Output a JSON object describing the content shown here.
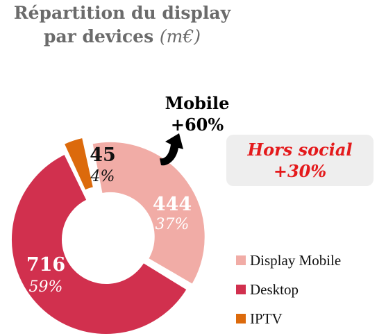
{
  "title": {
    "line1": "Répartition du display",
    "line2_main": "par devices",
    "line2_unit": "(m€)"
  },
  "callout": {
    "line1": "Mobile",
    "line2": "+60%"
  },
  "hors_social": {
    "line1": "Hors social",
    "line2": "+30%"
  },
  "colors": {
    "display_mobile": "#f1aca6",
    "desktop": "#d1304e",
    "iptv": "#dc6a0c",
    "hors_social_text": "#e41a1c",
    "hors_social_bg": "#eeeeee"
  },
  "chart_data": {
    "type": "pie",
    "variant": "donut",
    "categories": [
      "Display Mobile",
      "Desktop",
      "IPTV"
    ],
    "values": [
      444,
      716,
      45
    ],
    "percent_labels": [
      "37%",
      "59%",
      "4%"
    ],
    "value_labels": [
      "444",
      "716",
      "45"
    ],
    "legend_position": "right",
    "exploded": [
      "Display Mobile",
      "IPTV"
    ]
  }
}
